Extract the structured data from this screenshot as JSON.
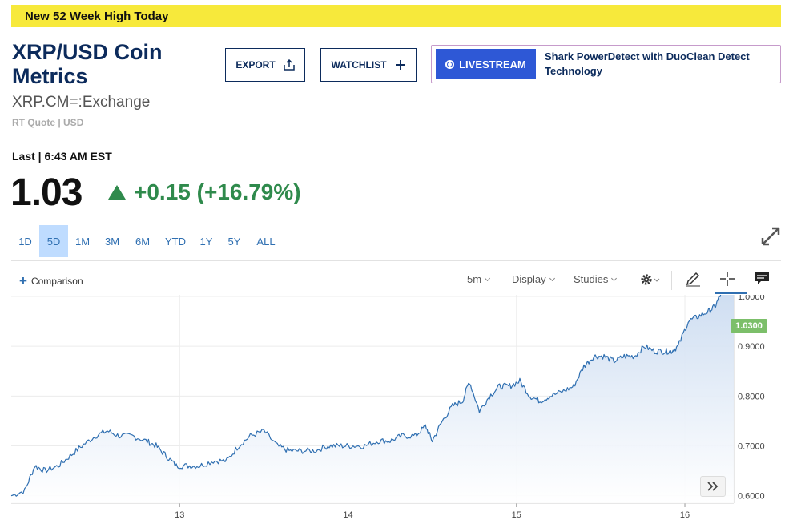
{
  "banner": {
    "text": "New 52 Week High Today"
  },
  "header": {
    "title": "XRP/USD Coin Metrics",
    "symbol": "XRP.CM=:Exchange",
    "quote_type": "RT Quote | USD"
  },
  "buttons": {
    "export": "EXPORT",
    "watchlist": "WATCHLIST"
  },
  "livestream": {
    "label": "LIVESTREAM",
    "text": "Shark PowerDetect with DuoClean Detect Technology"
  },
  "quote": {
    "last_label": "Last | 6:43 AM EST",
    "price": "1.03",
    "change": "+0.15 (+16.79%)",
    "direction": "up"
  },
  "ranges": [
    {
      "label": "1D",
      "active": false
    },
    {
      "label": "5D",
      "active": true
    },
    {
      "label": "1M",
      "active": false
    },
    {
      "label": "3M",
      "active": false
    },
    {
      "label": "6M",
      "active": false
    },
    {
      "label": "YTD",
      "active": false
    },
    {
      "label": "1Y",
      "active": false
    },
    {
      "label": "5Y",
      "active": false
    },
    {
      "label": "ALL",
      "active": false
    }
  ],
  "toolbar": {
    "comparison": "Comparison",
    "interval": "5m",
    "display": "Display",
    "studies": "Studies"
  },
  "colors": {
    "accent": "#2f6fb1",
    "positive": "#2f8a4c",
    "banner": "#f7e93b",
    "line": "#2f6fb1",
    "area": "#c9daf0"
  },
  "chart_data": {
    "type": "area",
    "last_value_label": "1.0300",
    "ylim": [
      0.585,
      1.0
    ],
    "y_ticks": [
      0.6,
      0.7,
      0.8,
      0.9,
      1.0
    ],
    "y_tick_labels": [
      "0.6000",
      "0.7000",
      "0.8000",
      "0.9000",
      "1.0000"
    ],
    "x_ticks": [
      13,
      14,
      15,
      16
    ],
    "x_tick_labels": [
      "13",
      "14",
      "15",
      "16"
    ],
    "xlim": [
      12.0,
      16.29
    ],
    "grid": true,
    "series": [
      {
        "x": [
          12.0,
          12.08,
          12.14,
          12.2,
          12.28,
          12.35,
          12.42,
          12.5,
          12.57,
          12.64,
          12.72,
          12.8,
          12.86,
          12.92,
          12.98,
          13.05,
          13.12,
          13.2,
          13.28,
          13.35,
          13.42,
          13.5,
          13.58,
          13.65,
          13.72,
          13.8,
          13.88,
          13.95,
          14.02,
          14.1,
          14.18,
          14.25,
          14.32,
          14.4,
          14.46,
          14.5,
          14.56,
          14.62,
          14.68,
          14.72,
          14.78,
          14.84,
          14.9,
          14.96,
          15.02,
          15.08,
          15.14,
          15.2,
          15.28,
          15.34,
          15.4,
          15.46,
          15.52,
          15.58,
          15.64,
          15.7,
          15.76,
          15.82,
          15.88,
          15.92,
          15.96,
          16.02,
          16.08,
          16.14,
          16.18,
          16.22,
          16.26,
          16.29
        ],
        "y": [
          0.6,
          0.61,
          0.66,
          0.65,
          0.66,
          0.68,
          0.7,
          0.72,
          0.73,
          0.72,
          0.72,
          0.71,
          0.7,
          0.68,
          0.66,
          0.66,
          0.66,
          0.67,
          0.67,
          0.7,
          0.72,
          0.73,
          0.7,
          0.69,
          0.69,
          0.69,
          0.7,
          0.7,
          0.7,
          0.7,
          0.71,
          0.71,
          0.72,
          0.72,
          0.74,
          0.71,
          0.75,
          0.78,
          0.79,
          0.83,
          0.77,
          0.8,
          0.82,
          0.82,
          0.83,
          0.8,
          0.79,
          0.8,
          0.81,
          0.82,
          0.86,
          0.88,
          0.88,
          0.87,
          0.88,
          0.88,
          0.9,
          0.89,
          0.89,
          0.89,
          0.9,
          0.95,
          0.96,
          0.97,
          0.98,
          1.01,
          1.02,
          1.03
        ]
      }
    ]
  }
}
